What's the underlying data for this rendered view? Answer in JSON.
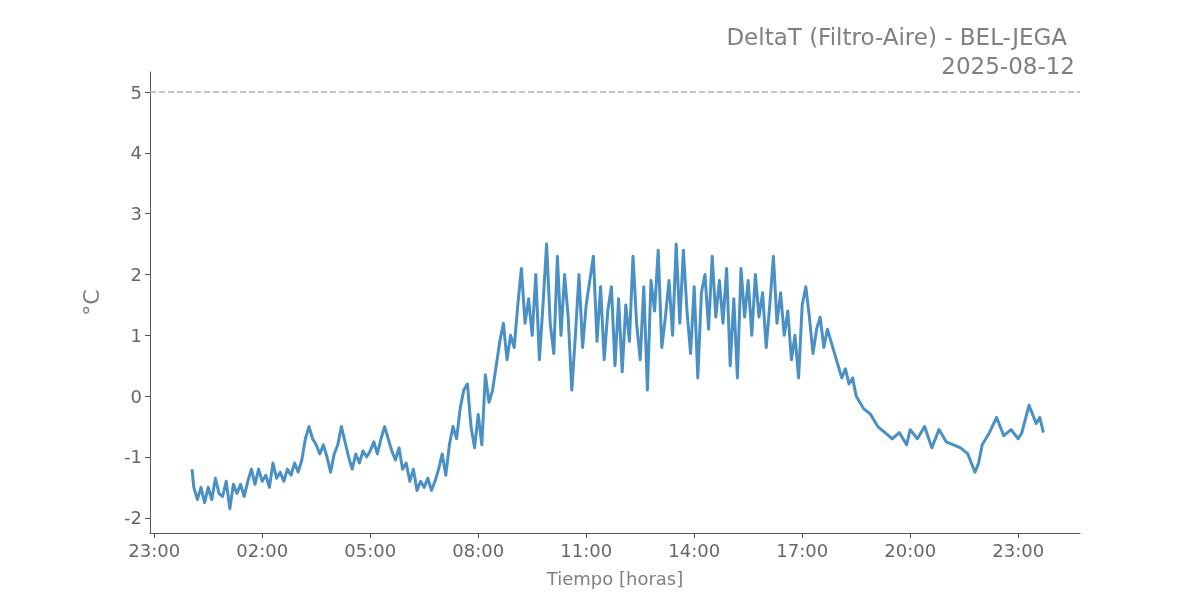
{
  "chart_data": {
    "type": "line",
    "title": "DeltaT (Filtro-Aire) - BEL-JEGA",
    "subtitle": "2025-08-12",
    "xlabel": "Tiempo [horas]",
    "ylabel": "°C",
    "x": [
      "2025-08-12T00:03",
      "2025-08-12T00:06",
      "2025-08-12T00:12",
      "2025-08-12T00:18",
      "2025-08-12T00:24",
      "2025-08-12T00:30",
      "2025-08-12T00:36",
      "2025-08-12T00:42",
      "2025-08-12T00:48",
      "2025-08-12T00:54",
      "2025-08-12T01:00",
      "2025-08-12T01:06",
      "2025-08-12T01:12",
      "2025-08-12T01:18",
      "2025-08-12T01:24",
      "2025-08-12T01:30",
      "2025-08-12T01:36",
      "2025-08-12T01:42",
      "2025-08-12T01:48",
      "2025-08-12T01:54",
      "2025-08-12T02:00",
      "2025-08-12T02:06",
      "2025-08-12T02:12",
      "2025-08-12T02:18",
      "2025-08-12T02:24",
      "2025-08-12T02:30",
      "2025-08-12T02:36",
      "2025-08-12T02:42",
      "2025-08-12T02:48",
      "2025-08-12T02:54",
      "2025-08-12T03:00",
      "2025-08-12T03:06",
      "2025-08-12T03:12",
      "2025-08-12T03:18",
      "2025-08-12T03:24",
      "2025-08-12T03:30",
      "2025-08-12T03:36",
      "2025-08-12T03:42",
      "2025-08-12T03:48",
      "2025-08-12T03:54",
      "2025-08-12T04:00",
      "2025-08-12T04:06",
      "2025-08-12T04:12",
      "2025-08-12T04:18",
      "2025-08-12T04:24",
      "2025-08-12T04:30",
      "2025-08-12T04:36",
      "2025-08-12T04:42",
      "2025-08-12T04:48",
      "2025-08-12T04:54",
      "2025-08-12T05:00",
      "2025-08-12T05:06",
      "2025-08-12T05:12",
      "2025-08-12T05:18",
      "2025-08-12T05:24",
      "2025-08-12T05:30",
      "2025-08-12T05:36",
      "2025-08-12T05:42",
      "2025-08-12T05:48",
      "2025-08-12T05:54",
      "2025-08-12T06:00",
      "2025-08-12T06:06",
      "2025-08-12T06:12",
      "2025-08-12T06:18",
      "2025-08-12T06:24",
      "2025-08-12T06:30",
      "2025-08-12T06:36",
      "2025-08-12T06:42",
      "2025-08-12T06:48",
      "2025-08-12T06:54",
      "2025-08-12T07:00",
      "2025-08-12T07:06",
      "2025-08-12T07:12",
      "2025-08-12T07:18",
      "2025-08-12T07:24",
      "2025-08-12T07:30",
      "2025-08-12T07:36",
      "2025-08-12T07:42",
      "2025-08-12T07:48",
      "2025-08-12T07:54",
      "2025-08-12T08:00",
      "2025-08-12T08:06",
      "2025-08-12T08:12",
      "2025-08-12T08:18",
      "2025-08-12T08:24",
      "2025-08-12T08:30",
      "2025-08-12T08:36",
      "2025-08-12T08:42",
      "2025-08-12T08:48",
      "2025-08-12T08:54",
      "2025-08-12T09:00",
      "2025-08-12T09:06",
      "2025-08-12T09:12",
      "2025-08-12T09:18",
      "2025-08-12T09:24",
      "2025-08-12T09:30",
      "2025-08-12T09:36",
      "2025-08-12T09:42",
      "2025-08-12T09:48",
      "2025-08-12T09:54",
      "2025-08-12T10:00",
      "2025-08-12T10:06",
      "2025-08-12T10:12",
      "2025-08-12T10:18",
      "2025-08-12T10:24",
      "2025-08-12T10:30",
      "2025-08-12T10:36",
      "2025-08-12T10:42",
      "2025-08-12T10:48",
      "2025-08-12T10:54",
      "2025-08-12T11:00",
      "2025-08-12T11:06",
      "2025-08-12T11:12",
      "2025-08-12T11:18",
      "2025-08-12T11:24",
      "2025-08-12T11:30",
      "2025-08-12T11:36",
      "2025-08-12T11:42",
      "2025-08-12T11:48",
      "2025-08-12T11:54",
      "2025-08-12T12:00",
      "2025-08-12T12:06",
      "2025-08-12T12:12",
      "2025-08-12T12:18",
      "2025-08-12T12:24",
      "2025-08-12T12:30",
      "2025-08-12T12:36",
      "2025-08-12T12:42",
      "2025-08-12T12:48",
      "2025-08-12T12:54",
      "2025-08-12T13:00",
      "2025-08-12T13:06",
      "2025-08-12T13:12",
      "2025-08-12T13:18",
      "2025-08-12T13:24",
      "2025-08-12T13:30",
      "2025-08-12T13:36",
      "2025-08-12T13:42",
      "2025-08-12T13:48",
      "2025-08-12T13:54",
      "2025-08-12T14:00",
      "2025-08-12T14:06",
      "2025-08-12T14:12",
      "2025-08-12T14:18",
      "2025-08-12T14:24",
      "2025-08-12T14:30",
      "2025-08-12T14:36",
      "2025-08-12T14:42",
      "2025-08-12T14:48",
      "2025-08-12T14:54",
      "2025-08-12T15:00",
      "2025-08-12T15:06",
      "2025-08-12T15:12",
      "2025-08-12T15:18",
      "2025-08-12T15:24",
      "2025-08-12T15:30",
      "2025-08-12T15:36",
      "2025-08-12T15:42",
      "2025-08-12T15:48",
      "2025-08-12T15:54",
      "2025-08-12T16:00",
      "2025-08-12T16:06",
      "2025-08-12T16:12",
      "2025-08-12T16:18",
      "2025-08-12T16:24",
      "2025-08-12T16:30",
      "2025-08-12T16:36",
      "2025-08-12T16:42",
      "2025-08-12T16:48",
      "2025-08-12T16:54",
      "2025-08-12T17:00",
      "2025-08-12T17:06",
      "2025-08-12T17:12",
      "2025-08-12T17:18",
      "2025-08-12T17:24",
      "2025-08-12T17:30",
      "2025-08-12T17:36",
      "2025-08-12T17:42",
      "2025-08-12T17:48",
      "2025-08-12T17:54",
      "2025-08-12T18:00",
      "2025-08-12T18:06",
      "2025-08-12T18:12",
      "2025-08-12T18:18",
      "2025-08-12T18:24",
      "2025-08-12T18:30",
      "2025-08-12T18:42",
      "2025-08-12T18:54",
      "2025-08-12T19:06",
      "2025-08-12T19:18",
      "2025-08-12T19:30",
      "2025-08-12T19:42",
      "2025-08-12T19:54",
      "2025-08-12T20:00",
      "2025-08-12T20:12",
      "2025-08-12T20:24",
      "2025-08-12T20:36",
      "2025-08-12T20:48",
      "2025-08-12T21:00",
      "2025-08-12T21:12",
      "2025-08-12T21:24",
      "2025-08-12T21:36",
      "2025-08-12T21:48",
      "2025-08-12T21:54",
      "2025-08-12T22:00",
      "2025-08-12T22:12",
      "2025-08-12T22:24",
      "2025-08-12T22:36",
      "2025-08-12T22:48",
      "2025-08-12T23:00",
      "2025-08-12T23:06",
      "2025-08-12T23:18",
      "2025-08-12T23:30",
      "2025-08-12T23:36",
      "2025-08-12T23:42"
    ],
    "series": [
      {
        "color": "#4a90c4",
        "values": [
          -1.2,
          -1.5,
          -1.7,
          -1.5,
          -1.75,
          -1.5,
          -1.7,
          -1.35,
          -1.6,
          -1.65,
          -1.4,
          -1.85,
          -1.45,
          -1.6,
          -1.45,
          -1.65,
          -1.4,
          -1.2,
          -1.45,
          -1.2,
          -1.4,
          -1.3,
          -1.5,
          -1.1,
          -1.35,
          -1.25,
          -1.4,
          -1.2,
          -1.3,
          -1.1,
          -1.25,
          -1.05,
          -0.7,
          -0.5,
          -0.7,
          -0.8,
          -0.95,
          -0.8,
          -1.0,
          -1.25,
          -0.95,
          -0.8,
          -0.5,
          -0.75,
          -1.0,
          -1.2,
          -0.95,
          -1.1,
          -0.9,
          -1.0,
          -0.9,
          -0.75,
          -0.95,
          -0.7,
          -0.5,
          -0.7,
          -0.9,
          -1.05,
          -0.85,
          -1.2,
          -1.1,
          -1.4,
          -1.2,
          -1.55,
          -1.4,
          -1.5,
          -1.35,
          -1.55,
          -1.4,
          -1.2,
          -0.95,
          -1.3,
          -0.8,
          -0.5,
          -0.7,
          -0.2,
          0.1,
          0.2,
          -0.5,
          -0.85,
          -0.3,
          -0.8,
          0.35,
          -0.1,
          0.1,
          0.5,
          0.9,
          1.2,
          0.6,
          1.0,
          0.8,
          1.5,
          2.1,
          1.2,
          1.6,
          1.0,
          2.0,
          0.6,
          1.5,
          2.5,
          1.2,
          0.7,
          2.3,
          1.0,
          2.0,
          1.3,
          0.1,
          1.0,
          2.0,
          0.8,
          1.5,
          1.9,
          2.3,
          0.9,
          1.8,
          0.6,
          1.4,
          1.8,
          0.5,
          1.6,
          0.4,
          1.5,
          0.9,
          2.3,
          1.2,
          0.6,
          1.8,
          0.1,
          1.9,
          1.4,
          2.4,
          0.8,
          1.3,
          1.9,
          1.0,
          2.5,
          1.2,
          2.4,
          1.4,
          0.7,
          1.8,
          0.3,
          1.7,
          2.0,
          1.1,
          2.3,
          1.3,
          1.9,
          1.2,
          2.1,
          0.5,
          1.6,
          0.3,
          2.1,
          1.3,
          1.9,
          1.0,
          2.0,
          1.3,
          1.7,
          0.8,
          1.5,
          2.3,
          1.2,
          1.7,
          1.0,
          1.4,
          0.6,
          1.0,
          0.3,
          1.5,
          1.8,
          1.3,
          0.7,
          1.1,
          1.3,
          0.8,
          1.1,
          0.9,
          0.7,
          0.5,
          0.3,
          0.45,
          0.2,
          0.3,
          0.0,
          -0.2,
          -0.3,
          -0.5,
          -0.6,
          -0.7,
          -0.6,
          -0.8,
          -0.55,
          -0.7,
          -0.5,
          -0.85,
          -0.55,
          -0.75,
          -0.8,
          -0.85,
          -0.95,
          -1.25,
          -1.1,
          -0.8,
          -0.6,
          -0.35,
          -0.65,
          -0.55,
          -0.7,
          -0.6,
          -0.15,
          -0.45,
          -0.35,
          -0.6
        ]
      }
    ],
    "xlim": [
      "2025-08-11T22:53",
      "2025-08-13T00:43"
    ],
    "xticks": [
      {
        "value": "2025-08-11T23:00",
        "label": "23:00"
      },
      {
        "value": "2025-08-12T02:00",
        "label": "02:00"
      },
      {
        "value": "2025-08-12T05:00",
        "label": "05:00"
      },
      {
        "value": "2025-08-12T08:00",
        "label": "08:00"
      },
      {
        "value": "2025-08-12T11:00",
        "label": "11:00"
      },
      {
        "value": "2025-08-12T14:00",
        "label": "14:00"
      },
      {
        "value": "2025-08-12T17:00",
        "label": "17:00"
      },
      {
        "value": "2025-08-12T20:00",
        "label": "20:00"
      },
      {
        "value": "2025-08-12T23:00",
        "label": "23:00"
      }
    ],
    "ylim": [
      -2.25,
      5.33
    ],
    "yticks": [
      -2,
      -1,
      0,
      1,
      2,
      3,
      4,
      5
    ],
    "ref_lines": [
      {
        "axis": "y",
        "value": 5,
        "color": "#b0b0b0",
        "line_style": "dashed"
      }
    ],
    "grid": false,
    "marker": "none",
    "line_style": "solid"
  }
}
